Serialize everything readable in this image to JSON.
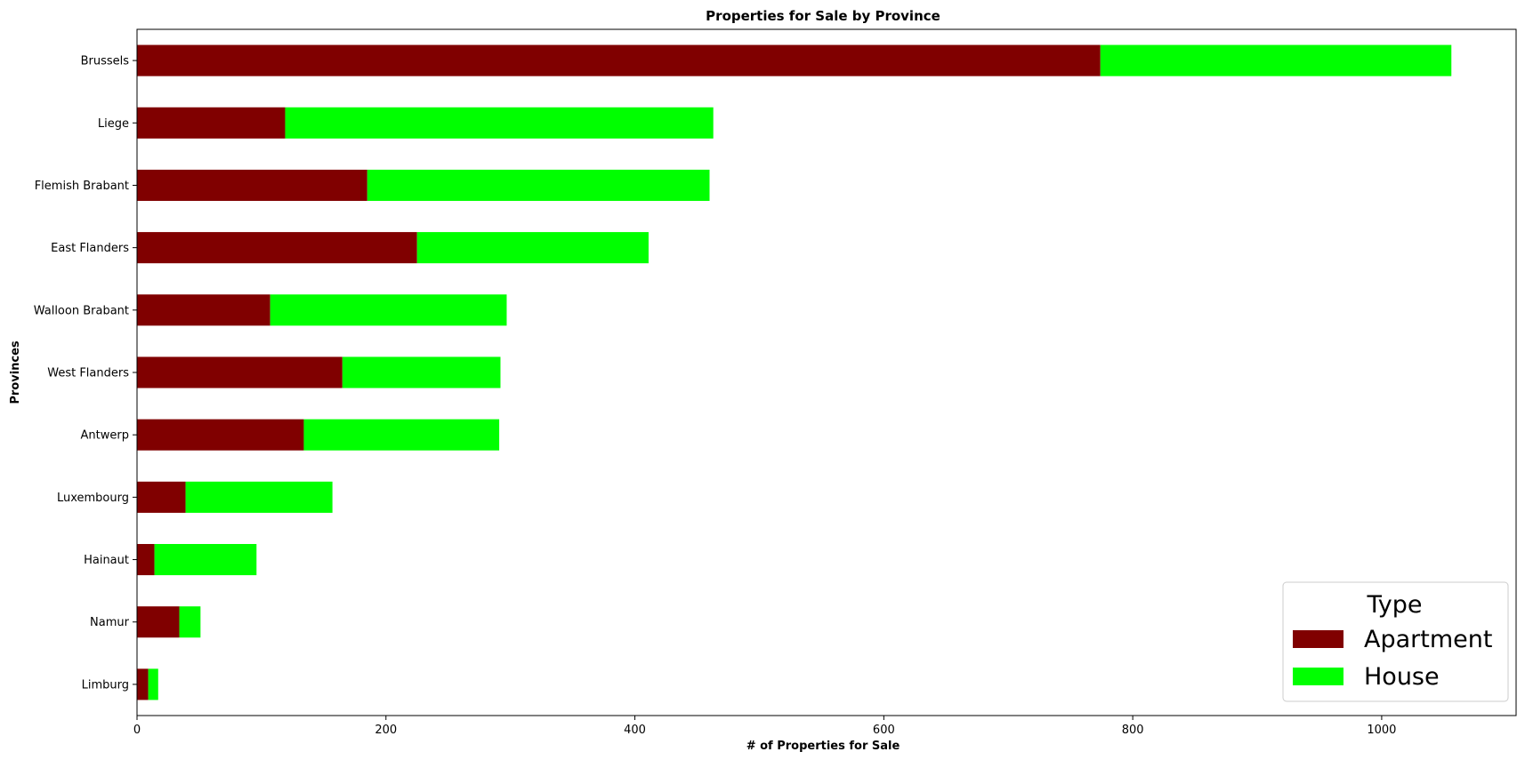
{
  "chart_data": {
    "type": "bar",
    "orientation": "horizontal",
    "stacked": true,
    "title": "Properties for Sale by Province",
    "xlabel": "# of Properties for Sale",
    "ylabel": "Provinces",
    "xlim": [
      0,
      1108
    ],
    "xticks": [
      0,
      200,
      400,
      600,
      800,
      1000
    ],
    "grid": false,
    "categories": [
      "Brussels",
      "Liege",
      "Flemish Brabant",
      "East Flanders",
      "Walloon Brabant",
      "West Flanders",
      "Antwerp",
      "Luxembourg",
      "Hainaut",
      "Namur",
      "Limburg"
    ],
    "series": [
      {
        "name": "Apartment",
        "color": "#800000",
        "values": [
          774,
          119,
          185,
          225,
          107,
          165,
          134,
          39,
          14,
          34,
          9
        ]
      },
      {
        "name": "House",
        "color": "#00ff00",
        "values": [
          282,
          344,
          275,
          186,
          190,
          127,
          157,
          118,
          82,
          17,
          8
        ]
      }
    ],
    "legend": {
      "title": "Type",
      "position": "lower-right"
    }
  }
}
